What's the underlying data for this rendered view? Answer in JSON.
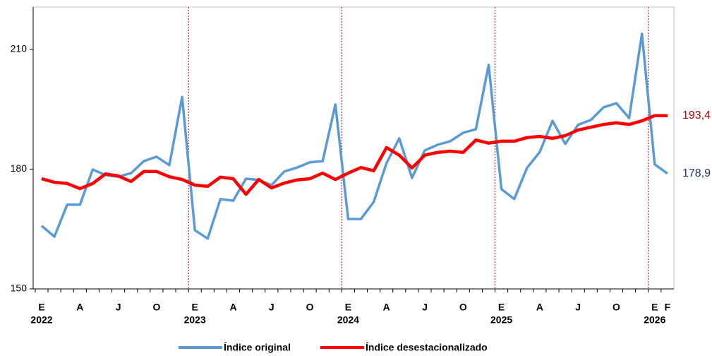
{
  "chart_data": {
    "type": "line",
    "categories": [
      "E",
      null,
      null,
      "A",
      null,
      null,
      "J",
      null,
      null,
      "O",
      null,
      null,
      "E",
      null,
      null,
      "A",
      null,
      null,
      "J",
      null,
      null,
      "O",
      null,
      null,
      "E",
      null,
      null,
      "A",
      null,
      null,
      "J",
      null,
      null,
      "O",
      null,
      null,
      "E",
      null,
      null,
      "A",
      null,
      null,
      "J",
      null,
      null,
      "O",
      null,
      null,
      "E",
      "F"
    ],
    "years": [
      "2022",
      null,
      null,
      null,
      null,
      null,
      null,
      null,
      null,
      null,
      null,
      null,
      "2023",
      null,
      null,
      null,
      null,
      null,
      null,
      null,
      null,
      null,
      null,
      null,
      "2024",
      null,
      null,
      null,
      null,
      null,
      null,
      null,
      null,
      null,
      null,
      null,
      "2025",
      null,
      null,
      null,
      null,
      null,
      null,
      null,
      null,
      null,
      null,
      null,
      "2026",
      null
    ],
    "ylim": [
      150,
      220.6
    ],
    "yticks": [
      150,
      180,
      210
    ],
    "series": [
      {
        "name": "Índice original",
        "color": "#5b9bd5",
        "label_color": "#1f3864",
        "end_label": "178,9",
        "values": [
          165.8,
          163.1,
          171.1,
          171.1,
          179.9,
          178.5,
          178.1,
          179.0,
          182.0,
          183.1,
          181.0,
          198.1,
          164.7,
          162.6,
          172.5,
          172.1,
          177.6,
          177.3,
          176.0,
          179.4,
          180.4,
          181.7,
          182.0,
          196.2,
          167.5,
          167.5,
          171.8,
          181.5,
          187.7,
          177.8,
          184.7,
          186.1,
          187.0,
          189.1,
          190.0,
          206.1,
          175.0,
          172.5,
          180.3,
          184.3,
          192.1,
          186.3,
          191.1,
          192.3,
          195.5,
          196.5,
          192.8,
          213.9,
          181.2,
          178.9
        ]
      },
      {
        "name": "Índice desestacionalizado",
        "color": "#ff0000",
        "label_color": "#c00000",
        "end_label": "193,4",
        "values": [
          177.6,
          176.7,
          176.4,
          175.1,
          176.4,
          178.8,
          178.3,
          176.9,
          179.4,
          179.4,
          178.1,
          177.4,
          176.0,
          175.7,
          178.0,
          177.6,
          173.7,
          177.4,
          175.3,
          176.5,
          177.3,
          177.6,
          179.0,
          177.4,
          179.0,
          180.4,
          179.6,
          185.4,
          183.5,
          180.3,
          183.5,
          184.2,
          184.5,
          184.2,
          187.3,
          186.5,
          187.0,
          187.0,
          187.9,
          188.2,
          187.7,
          188.4,
          189.8,
          190.5,
          191.2,
          191.6,
          191.2,
          192.1,
          193.4,
          193.4
        ]
      }
    ]
  }
}
